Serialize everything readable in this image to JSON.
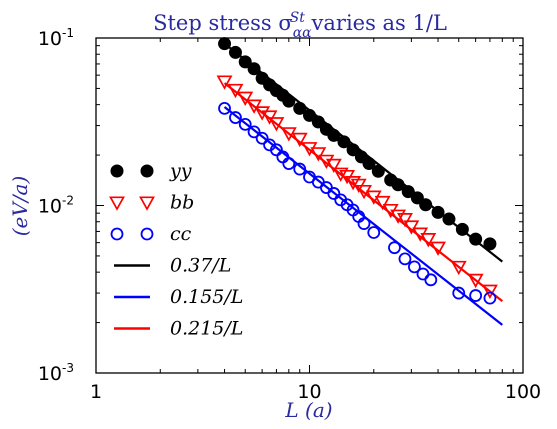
{
  "chart_data": {
    "type": "scatter",
    "title": "Step stress σ_αα^St varies as 1/L",
    "title_parts": {
      "main": "Step stress σ",
      "sub": "αα",
      "sup": "St",
      "rest": " varies as 1/L"
    },
    "xlabel": "L (a)",
    "ylabel": "(eV/a)",
    "xscale": "log",
    "yscale": "log",
    "xlim": [
      1,
      100
    ],
    "ylim": [
      0.001,
      0.1
    ],
    "x_ticks": [
      {
        "value": 1,
        "label": "1"
      },
      {
        "value": 10,
        "label": "10"
      },
      {
        "value": 100,
        "label": "100"
      }
    ],
    "y_ticks": [
      {
        "value": 0.001,
        "base": "10",
        "exp": "-3"
      },
      {
        "value": 0.01,
        "base": "10",
        "exp": "-2"
      },
      {
        "value": 0.1,
        "base": "10",
        "exp": "-1"
      }
    ],
    "legend_position": "left",
    "series": [
      {
        "name": "yy",
        "marker": "filled-circle",
        "color": "#000000",
        "x": [
          4,
          4.5,
          5,
          5.5,
          6,
          6.5,
          7,
          7.5,
          8,
          9,
          10,
          11,
          12,
          13,
          14.5,
          16,
          17.5,
          19,
          21,
          24,
          26,
          29,
          32,
          35,
          40,
          45,
          52,
          60,
          70
        ],
        "y": [
          0.0925,
          0.082,
          0.072,
          0.0655,
          0.0575,
          0.0525,
          0.0485,
          0.0455,
          0.042,
          0.038,
          0.0345,
          0.0315,
          0.0285,
          0.0262,
          0.024,
          0.0215,
          0.0195,
          0.0178,
          0.016,
          0.0142,
          0.0133,
          0.0121,
          0.0111,
          0.0101,
          0.0091,
          0.0083,
          0.0072,
          0.0063,
          0.0059
        ]
      },
      {
        "name": "bb",
        "marker": "triangle-down-open",
        "color": "#ff0000",
        "x": [
          4,
          4.5,
          5,
          5.5,
          6,
          6.5,
          7,
          8,
          9,
          10,
          11,
          12,
          13,
          14,
          15,
          16,
          17,
          18,
          20,
          22,
          24,
          26,
          28,
          30,
          33,
          36,
          40,
          50,
          60,
          70
        ],
        "y": [
          0.055,
          0.049,
          0.044,
          0.0395,
          0.036,
          0.034,
          0.031,
          0.027,
          0.025,
          0.022,
          0.0205,
          0.0185,
          0.0175,
          0.0155,
          0.015,
          0.0138,
          0.0133,
          0.0122,
          0.0113,
          0.0105,
          0.0094,
          0.0087,
          0.0083,
          0.0075,
          0.0068,
          0.0063,
          0.0056,
          0.0043,
          0.0036,
          0.0031
        ]
      },
      {
        "name": "cc",
        "marker": "open-circle",
        "color": "#0000ff",
        "x": [
          4,
          4.5,
          5,
          5.5,
          6,
          6.5,
          7,
          7.5,
          8,
          9,
          10,
          11,
          12,
          13,
          14,
          15,
          16,
          17,
          18,
          20,
          25,
          28,
          31,
          34,
          37,
          50,
          60,
          70
        ],
        "y": [
          0.038,
          0.0335,
          0.0305,
          0.0275,
          0.0252,
          0.023,
          0.0215,
          0.0195,
          0.0178,
          0.0165,
          0.0148,
          0.0138,
          0.0128,
          0.0118,
          0.0108,
          0.0101,
          0.0094,
          0.0086,
          0.0078,
          0.0069,
          0.0056,
          0.0048,
          0.0043,
          0.0039,
          0.0036,
          0.003,
          0.0029,
          0.0028
        ]
      }
    ],
    "fit_lines": [
      {
        "name": "0.37/L",
        "coef": 0.37,
        "color": "#000000",
        "x_range": [
          4,
          80
        ]
      },
      {
        "name": "0.155/L",
        "coef": 0.155,
        "color": "#0000ff",
        "x_range": [
          4,
          80
        ]
      },
      {
        "name": "0.215/L",
        "coef": 0.215,
        "color": "#ff0000",
        "x_range": [
          4,
          80
        ]
      }
    ]
  }
}
